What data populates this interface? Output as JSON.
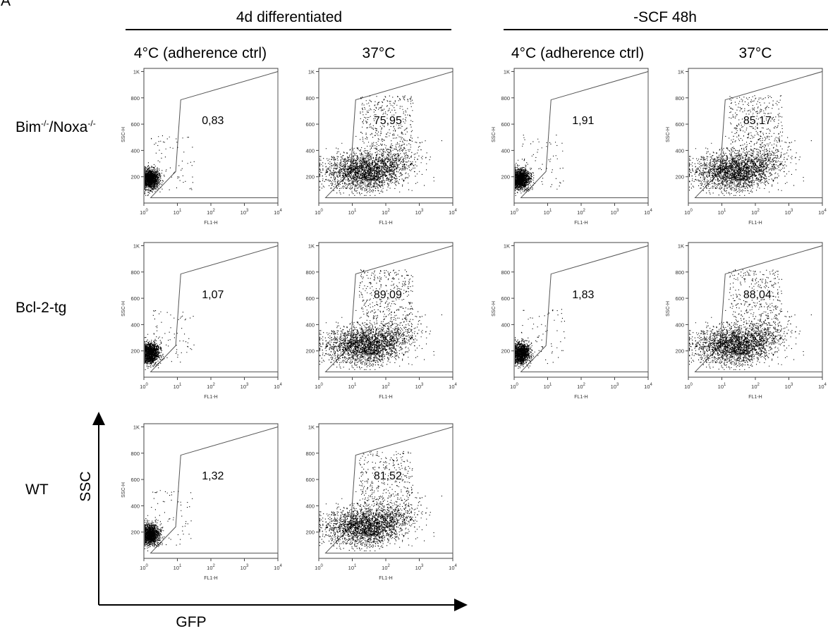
{
  "panel_letter": "A",
  "groups": [
    {
      "label": "4d differentiated"
    },
    {
      "label": "-SCF 48h"
    }
  ],
  "conditions": [
    "4°C (adherence ctrl)",
    "37°C",
    "4°C (adherence ctrl)",
    "37°C"
  ],
  "rows": [
    {
      "label_main": "Bim",
      "label_sup1": "-/-",
      "label_mid": "/Noxa",
      "label_sup2": "-/-"
    },
    {
      "label_main": "Bcl-2-tg"
    },
    {
      "label_main": "WT"
    }
  ],
  "big_axes": {
    "y_label": "SSC",
    "x_label": "GFP"
  },
  "plot_axes": {
    "x_label": "FL1-H",
    "y_label": "SSC-H",
    "x_scale": "log",
    "x_range": [
      1,
      10000
    ],
    "x_ticks": [
      {
        "base": "10",
        "exp": "0"
      },
      {
        "base": "10",
        "exp": "1"
      },
      {
        "base": "10",
        "exp": "2"
      },
      {
        "base": "10",
        "exp": "3"
      },
      {
        "base": "10",
        "exp": "4"
      }
    ],
    "y_range": [
      0,
      1024
    ],
    "y_ticks": [
      "200",
      "400",
      "600",
      "800",
      "1K"
    ]
  },
  "chart_data": [
    {
      "type": "scatter",
      "row": "Bim-/-/Noxa-/-",
      "group": "4d differentiated",
      "condition": "4°C (adherence ctrl)",
      "gate_percent": "0,83"
    },
    {
      "type": "scatter",
      "row": "Bim-/-/Noxa-/-",
      "group": "4d differentiated",
      "condition": "37°C",
      "gate_percent": "75,95"
    },
    {
      "type": "scatter",
      "row": "Bim-/-/Noxa-/-",
      "group": "-SCF 48h",
      "condition": "4°C (adherence ctrl)",
      "gate_percent": "1,91"
    },
    {
      "type": "scatter",
      "row": "Bim-/-/Noxa-/-",
      "group": "-SCF 48h",
      "condition": "37°C",
      "gate_percent": "85,17"
    },
    {
      "type": "scatter",
      "row": "Bcl-2-tg",
      "group": "4d differentiated",
      "condition": "4°C (adherence ctrl)",
      "gate_percent": "1,07"
    },
    {
      "type": "scatter",
      "row": "Bcl-2-tg",
      "group": "4d differentiated",
      "condition": "37°C",
      "gate_percent": "89,09"
    },
    {
      "type": "scatter",
      "row": "Bcl-2-tg",
      "group": "-SCF 48h",
      "condition": "4°C (adherence ctrl)",
      "gate_percent": "1,83"
    },
    {
      "type": "scatter",
      "row": "Bcl-2-tg",
      "group": "-SCF 48h",
      "condition": "37°C",
      "gate_percent": "88,04"
    },
    {
      "type": "scatter",
      "row": "WT",
      "group": "4d differentiated",
      "condition": "4°C (adherence ctrl)",
      "gate_percent": "1,32"
    },
    {
      "type": "scatter",
      "row": "WT",
      "group": "4d differentiated",
      "condition": "37°C",
      "gate_percent": "81,52"
    }
  ]
}
